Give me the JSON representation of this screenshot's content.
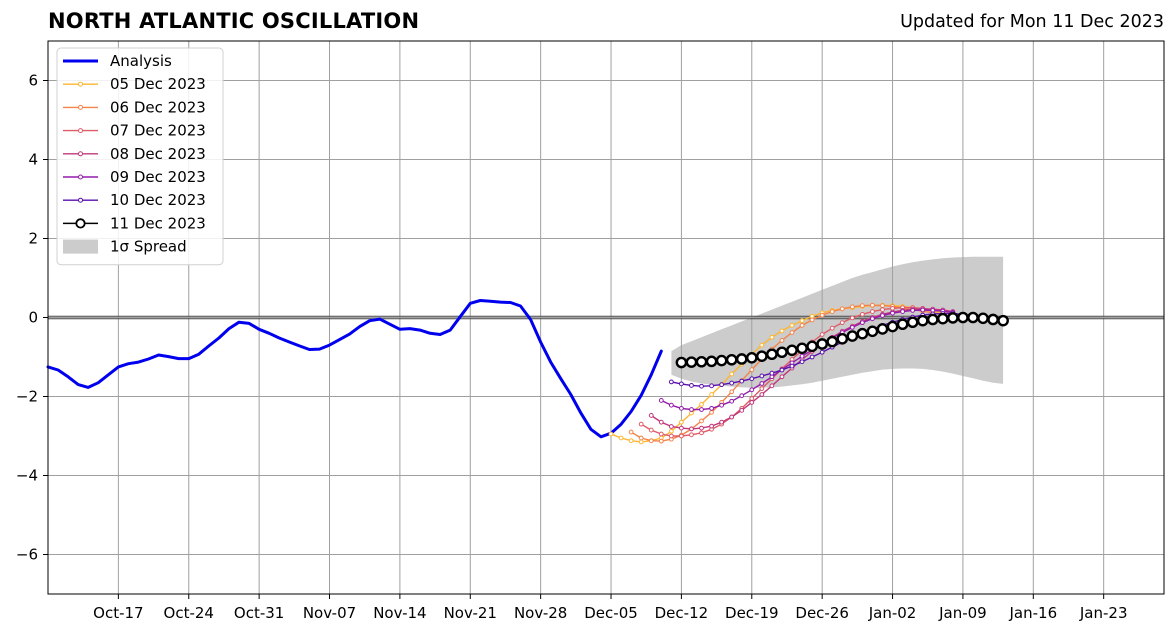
{
  "title": "NORTH ATLANTIC OSCILLATION",
  "subtitle": "Updated for Mon 11 Dec 2023",
  "chart_data": {
    "type": "line",
    "title": "NORTH ATLANTIC OSCILLATION",
    "subtitle": "Updated for Mon 11 Dec 2023",
    "xlabel": "",
    "ylabel": "",
    "x_is_date": true,
    "xlim": [
      "2023-10-10",
      "2024-01-29"
    ],
    "ylim": [
      -7,
      7
    ],
    "x_ticks": [
      {
        "date": "2023-10-17",
        "label": "Oct-17"
      },
      {
        "date": "2023-10-24",
        "label": "Oct-24"
      },
      {
        "date": "2023-10-31",
        "label": "Oct-31"
      },
      {
        "date": "2023-11-07",
        "label": "Nov-07"
      },
      {
        "date": "2023-11-14",
        "label": "Nov-14"
      },
      {
        "date": "2023-11-21",
        "label": "Nov-21"
      },
      {
        "date": "2023-11-28",
        "label": "Nov-28"
      },
      {
        "date": "2023-12-05",
        "label": "Dec-05"
      },
      {
        "date": "2023-12-12",
        "label": "Dec-12"
      },
      {
        "date": "2023-12-19",
        "label": "Dec-19"
      },
      {
        "date": "2023-12-26",
        "label": "Dec-26"
      },
      {
        "date": "2024-01-02",
        "label": "Jan-02"
      },
      {
        "date": "2024-01-09",
        "label": "Jan-09"
      },
      {
        "date": "2024-01-16",
        "label": "Jan-16"
      },
      {
        "date": "2024-01-23",
        "label": "Jan-23"
      }
    ],
    "y_ticks": [
      {
        "value": -6,
        "label": "−6"
      },
      {
        "value": -4,
        "label": "−4"
      },
      {
        "value": -2,
        "label": "−2"
      },
      {
        "value": 0,
        "label": "0"
      },
      {
        "value": 2,
        "label": "2"
      },
      {
        "value": 4,
        "label": "4"
      },
      {
        "value": 6,
        "label": "6"
      }
    ],
    "grid": true,
    "zero_line": true,
    "legend_position": "top-left",
    "series": [
      {
        "name": "Analysis",
        "color": "#0000ee",
        "style": "analysis",
        "start": "2023-10-10",
        "values": [
          -1.25,
          -1.33,
          -1.5,
          -1.7,
          -1.77,
          -1.65,
          -1.45,
          -1.25,
          -1.17,
          -1.13,
          -1.05,
          -0.95,
          -0.99,
          -1.04,
          -1.04,
          -0.93,
          -0.72,
          -0.52,
          -0.28,
          -0.12,
          -0.15,
          -0.3,
          -0.4,
          -0.52,
          -0.62,
          -0.72,
          -0.81,
          -0.8,
          -0.7,
          -0.56,
          -0.42,
          -0.23,
          -0.08,
          -0.04,
          -0.17,
          -0.3,
          -0.28,
          -0.32,
          -0.4,
          -0.43,
          -0.32,
          0.02,
          0.36,
          0.43,
          0.41,
          0.39,
          0.38,
          0.29,
          -0.05,
          -0.62,
          -1.13,
          -1.55,
          -1.95,
          -2.42,
          -2.83,
          -3.02,
          -2.93,
          -2.7,
          -2.38,
          -1.97,
          -1.45,
          -0.85
        ]
      },
      {
        "name": "05 Dec 2023",
        "color": "#fcb632",
        "style": "forecast",
        "start": "2023-12-05",
        "values": [
          -2.95,
          -3.05,
          -3.12,
          -3.15,
          -3.12,
          -3.05,
          -2.88,
          -2.65,
          -2.42,
          -2.2,
          -1.95,
          -1.7,
          -1.43,
          -1.18,
          -0.93,
          -0.7,
          -0.5,
          -0.34,
          -0.2,
          -0.08,
          0.03,
          0.12,
          0.18,
          0.22,
          0.25,
          0.28,
          0.3,
          0.31,
          0.3,
          0.28,
          0.25,
          0.2,
          0.16,
          0.12,
          0.08
        ]
      },
      {
        "name": "06 Dec 2023",
        "color": "#f4834a",
        "style": "forecast",
        "start": "2023-12-07",
        "values": [
          -2.9,
          -3.05,
          -3.12,
          -3.13,
          -3.08,
          -2.98,
          -2.82,
          -2.62,
          -2.4,
          -2.15,
          -1.88,
          -1.6,
          -1.32,
          -1.05,
          -0.8,
          -0.58,
          -0.38,
          -0.2,
          -0.06,
          0.06,
          0.15,
          0.22,
          0.27,
          0.3,
          0.31,
          0.3,
          0.28,
          0.24,
          0.2,
          0.16,
          0.12,
          0.08
        ]
      },
      {
        "name": "07 Dec 2023",
        "color": "#de5b67",
        "style": "forecast",
        "start": "2023-12-08",
        "values": [
          -2.7,
          -2.85,
          -2.95,
          -3.0,
          -3.0,
          -2.97,
          -2.92,
          -2.83,
          -2.7,
          -2.52,
          -2.3,
          -2.05,
          -1.8,
          -1.55,
          -1.3,
          -1.06,
          -0.83,
          -0.62,
          -0.43,
          -0.27,
          -0.13,
          -0.01,
          0.08,
          0.15,
          0.2,
          0.23,
          0.25,
          0.25,
          0.23,
          0.2,
          0.16,
          0.12
        ]
      },
      {
        "name": "08 Dec 2023",
        "color": "#c0387b",
        "style": "forecast",
        "start": "2023-12-09",
        "values": [
          -2.48,
          -2.65,
          -2.76,
          -2.8,
          -2.82,
          -2.8,
          -2.75,
          -2.65,
          -2.52,
          -2.35,
          -2.15,
          -1.95,
          -1.73,
          -1.5,
          -1.28,
          -1.06,
          -0.86,
          -0.67,
          -0.5,
          -0.35,
          -0.22,
          -0.1,
          0.0,
          0.08,
          0.14,
          0.18,
          0.21,
          0.22,
          0.21,
          0.19,
          0.15
        ]
      },
      {
        "name": "09 Dec 2023",
        "color": "#941bab",
        "style": "forecast",
        "start": "2023-12-10",
        "values": [
          -2.1,
          -2.22,
          -2.3,
          -2.33,
          -2.33,
          -2.3,
          -2.22,
          -2.12,
          -1.98,
          -1.83,
          -1.67,
          -1.5,
          -1.32,
          -1.15,
          -0.98,
          -0.82,
          -0.66,
          -0.52,
          -0.38,
          -0.25,
          -0.13,
          -0.03,
          0.05,
          0.11,
          0.15,
          0.18,
          0.19,
          0.18,
          0.16,
          0.13
        ]
      },
      {
        "name": "10 Dec 2023",
        "color": "#5a0fae",
        "style": "forecast",
        "start": "2023-12-11",
        "values": [
          -1.63,
          -1.68,
          -1.72,
          -1.74,
          -1.73,
          -1.7,
          -1.66,
          -1.61,
          -1.55,
          -1.48,
          -1.41,
          -1.33,
          -1.23,
          -1.12,
          -1.0,
          -0.88,
          -0.75,
          -0.62,
          -0.5,
          -0.39,
          -0.29,
          -0.2,
          -0.12,
          -0.05,
          0.01,
          0.06,
          0.09,
          0.1,
          0.1,
          0.08
        ]
      },
      {
        "name": "11 Dec 2023",
        "color": "#000000",
        "style": "current",
        "start": "2023-12-12",
        "values": [
          -1.14,
          -1.13,
          -1.12,
          -1.11,
          -1.09,
          -1.07,
          -1.05,
          -1.02,
          -0.98,
          -0.93,
          -0.88,
          -0.83,
          -0.78,
          -0.73,
          -0.67,
          -0.61,
          -0.54,
          -0.47,
          -0.41,
          -0.35,
          -0.29,
          -0.23,
          -0.17,
          -0.12,
          -0.08,
          -0.05,
          -0.03,
          -0.01,
          0.0,
          0.0,
          -0.02,
          -0.05,
          -0.08
        ]
      }
    ],
    "spread": {
      "name": "1σ Spread",
      "color": "#cccccc",
      "start": "2023-12-11",
      "upper": [
        -0.85,
        -0.7,
        -0.6,
        -0.5,
        -0.4,
        -0.3,
        -0.2,
        -0.1,
        0.0,
        0.1,
        0.2,
        0.3,
        0.4,
        0.5,
        0.6,
        0.7,
        0.8,
        0.9,
        1.0,
        1.08,
        1.15,
        1.22,
        1.29,
        1.35,
        1.4,
        1.44,
        1.47,
        1.5,
        1.52,
        1.53,
        1.54,
        1.54,
        1.54,
        1.54
      ],
      "lower": [
        -1.45,
        -1.55,
        -1.62,
        -1.67,
        -1.7,
        -1.73,
        -1.75,
        -1.77,
        -1.78,
        -1.78,
        -1.77,
        -1.75,
        -1.72,
        -1.69,
        -1.65,
        -1.6,
        -1.55,
        -1.5,
        -1.45,
        -1.4,
        -1.36,
        -1.32,
        -1.3,
        -1.29,
        -1.29,
        -1.3,
        -1.33,
        -1.37,
        -1.42,
        -1.48,
        -1.54,
        -1.6,
        -1.65,
        -1.68
      ]
    }
  }
}
